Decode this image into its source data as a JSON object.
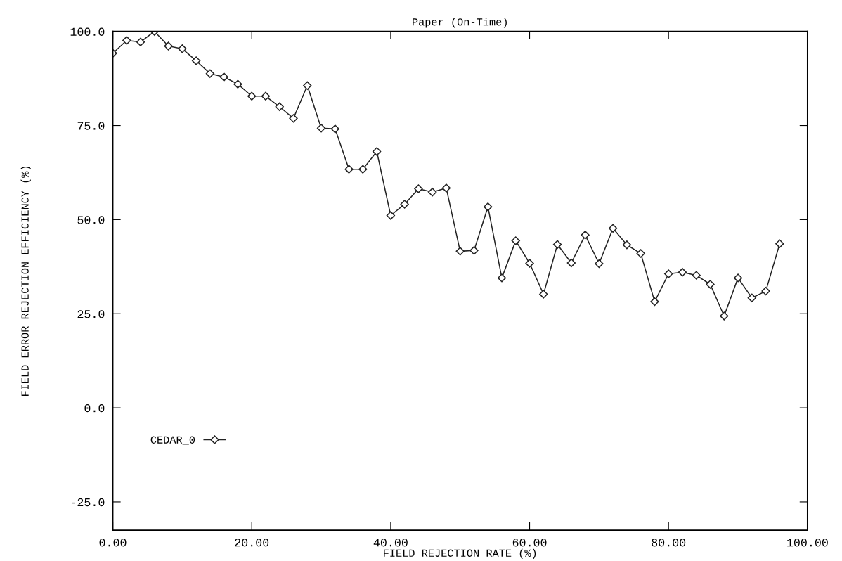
{
  "chart_data": {
    "type": "line",
    "title": "Paper (On-Time)",
    "xlabel": "FIELD REJECTION RATE (%)",
    "ylabel": "FIELD ERROR REJECTION EFFICIENCY (%)",
    "x": [
      0,
      2,
      4,
      6,
      8,
      10,
      12,
      14,
      16,
      18,
      20,
      22,
      24,
      26,
      28,
      30,
      32,
      34,
      36,
      38,
      40,
      42,
      44,
      46,
      48,
      50,
      52,
      54,
      56,
      58,
      60,
      62,
      64,
      66,
      68,
      70,
      72,
      74,
      76,
      78,
      80,
      82,
      84,
      86,
      88,
      90,
      92,
      94,
      96
    ],
    "series": [
      {
        "name": "CEDAR_0",
        "color": "#222222",
        "values": [
          94.2,
          97.6,
          97.2,
          100,
          96.1,
          95.4,
          92.2,
          88.8,
          87.9,
          86.0,
          82.8,
          82.8,
          80.0,
          76.9,
          85.6,
          74.3,
          74.1,
          63.4,
          63.4,
          68.1,
          51.1,
          54.1,
          58.2,
          57.3,
          58.4,
          41.6,
          41.8,
          53.4,
          34.5,
          44.4,
          38.4,
          30.2,
          43.4,
          38.5,
          45.9,
          38.3,
          47.7,
          43.3,
          41.0,
          28.2,
          35.6,
          36.0,
          35.2,
          32.8,
          24.4,
          34.5,
          29.2,
          31.0,
          43.6
        ]
      }
    ],
    "xlim": [
      0,
      100
    ],
    "ylim": [
      -32.5,
      100
    ],
    "xticks": [
      {
        "value": 0,
        "label": "0.00"
      },
      {
        "value": 20,
        "label": "20.00"
      },
      {
        "value": 40,
        "label": "40.00"
      },
      {
        "value": 60,
        "label": "60.00"
      },
      {
        "value": 80,
        "label": "80.00"
      },
      {
        "value": 100,
        "label": "100.00"
      }
    ],
    "yticks": [
      {
        "value": -25,
        "label": "-25.0"
      },
      {
        "value": 0,
        "label": "0.0"
      },
      {
        "value": 25,
        "label": "25.0"
      },
      {
        "value": 50,
        "label": "50.0"
      },
      {
        "value": 75,
        "label": "75.0"
      },
      {
        "value": 100,
        "label": "100.0"
      }
    ],
    "grid": false,
    "legend": "bottom left",
    "marker": "diamond",
    "line_style": "solid"
  }
}
